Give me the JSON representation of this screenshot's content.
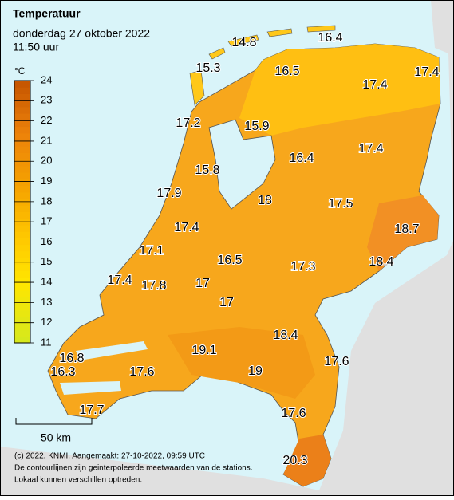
{
  "header": {
    "title": "Temperatuur",
    "date": "donderdag 27 oktober 2022",
    "time": "11:50 uur"
  },
  "legend": {
    "unit": "°C",
    "ylim": [
      11,
      24
    ],
    "yticks": [
      11,
      12,
      13,
      14,
      15,
      16,
      17,
      18,
      19,
      20,
      21,
      22,
      23,
      24
    ]
  },
  "stations": [
    {
      "value": 14.8
    },
    {
      "value": 16.4
    },
    {
      "value": 15.3
    },
    {
      "value": 16.5
    },
    {
      "value": 17.4
    },
    {
      "value": 17.4
    },
    {
      "value": 17.2
    },
    {
      "value": 15.9
    },
    {
      "value": 16.4
    },
    {
      "value": 17.4
    },
    {
      "value": 15.8
    },
    {
      "value": 17.9
    },
    {
      "value": 18.0
    },
    {
      "value": 17.5
    },
    {
      "value": 18.7
    },
    {
      "value": 17.4
    },
    {
      "value": 17.1
    },
    {
      "value": 16.5
    },
    {
      "value": 18.4
    },
    {
      "value": 17.3
    },
    {
      "value": 17.4
    },
    {
      "value": 17.8
    },
    {
      "value": 17.0
    },
    {
      "value": 17.0
    },
    {
      "value": 18.4
    },
    {
      "value": 19.1
    },
    {
      "value": 17.6
    },
    {
      "value": 16.8
    },
    {
      "value": 19.0
    },
    {
      "value": 16.3
    },
    {
      "value": 17.6
    },
    {
      "value": 17.7
    },
    {
      "value": 17.6
    },
    {
      "value": 20.3
    }
  ],
  "scale": {
    "label": "50 km"
  },
  "footer": {
    "lines": [
      "(c) 2022, KNMI. Aangemaakt: 27-10-2022, 09:59 UTC",
      "De contourlijnen zijn geinterpoleerde meetwaarden van de stations.",
      "Lokaal kunnen verschillen optreden."
    ]
  }
}
